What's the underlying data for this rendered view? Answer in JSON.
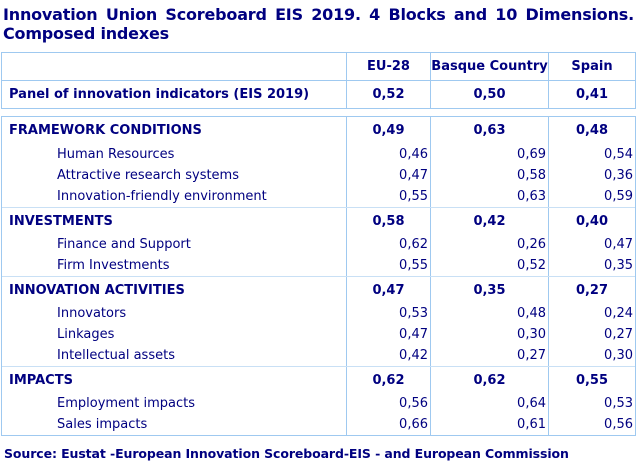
{
  "title": {
    "line1": "Innovation Union Scoreboard EIS 2019. 4 Blocks and 10 Dimensions.",
    "line2": "Composed indexes"
  },
  "columns": [
    "EU-28",
    "Basque Country",
    "Spain"
  ],
  "panel_row": {
    "label": "Panel of innovation indicators (EIS 2019)",
    "values": [
      "0,52",
      "0,50",
      "0,41"
    ]
  },
  "sections": [
    {
      "label": "FRAMEWORK CONDITIONS",
      "values": [
        "0,49",
        "0,63",
        "0,48"
      ],
      "rows": [
        {
          "label": "Human Resources",
          "values": [
            "0,46",
            "0,69",
            "0,54"
          ]
        },
        {
          "label": "Attractive research systems",
          "values": [
            "0,47",
            "0,58",
            "0,36"
          ]
        },
        {
          "label": "Innovation-friendly environment",
          "values": [
            "0,55",
            "0,63",
            "0,59"
          ]
        }
      ]
    },
    {
      "label": "INVESTMENTS",
      "values": [
        "0,58",
        "0,42",
        "0,40"
      ],
      "rows": [
        {
          "label": "Finance and Support",
          "values": [
            "0,62",
            "0,26",
            "0,47"
          ]
        },
        {
          "label": "Firm Investments",
          "values": [
            "0,55",
            "0,52",
            "0,35"
          ]
        }
      ]
    },
    {
      "label": "INNOVATION ACTIVITIES",
      "values": [
        "0,47",
        "0,35",
        "0,27"
      ],
      "rows": [
        {
          "label": "Innovators",
          "values": [
            "0,53",
            "0,48",
            "0,24"
          ]
        },
        {
          "label": "Linkages",
          "values": [
            "0,47",
            "0,30",
            "0,27"
          ]
        },
        {
          "label": "Intellectual assets",
          "values": [
            "0,42",
            "0,27",
            "0,30"
          ]
        }
      ]
    },
    {
      "label": "IMPACTS",
      "values": [
        "0,62",
        "0,62",
        "0,55"
      ],
      "rows": [
        {
          "label": "Employment impacts",
          "values": [
            "0,56",
            "0,64",
            "0,53"
          ]
        },
        {
          "label": "Sales impacts",
          "values": [
            "0,66",
            "0,61",
            "0,56"
          ]
        }
      ]
    }
  ],
  "source": "Source: Eustat -European Innovation Scoreboard-EIS - and European Commission",
  "colors": {
    "text_navy": "#000080",
    "border_blue": "#9fc9f0",
    "background": "#ffffff"
  },
  "chart_data": {
    "type": "table",
    "title": "Innovation Union Scoreboard EIS 2019. 4 Blocks and 10 Dimensions. Composed indexes",
    "columns": [
      "",
      "EU-28",
      "Basque Country",
      "Spain"
    ],
    "rows": [
      [
        "Panel of innovation indicators (EIS 2019)",
        0.52,
        0.5,
        0.41
      ],
      [
        "FRAMEWORK CONDITIONS",
        0.49,
        0.63,
        0.48
      ],
      [
        "Human Resources",
        0.46,
        0.69,
        0.54
      ],
      [
        "Attractive research systems",
        0.47,
        0.58,
        0.36
      ],
      [
        "Innovation-friendly environment",
        0.55,
        0.63,
        0.59
      ],
      [
        "INVESTMENTS",
        0.58,
        0.42,
        0.4
      ],
      [
        "Finance and Support",
        0.62,
        0.26,
        0.47
      ],
      [
        "Firm Investments",
        0.55,
        0.52,
        0.35
      ],
      [
        "INNOVATION ACTIVITIES",
        0.47,
        0.35,
        0.27
      ],
      [
        "Innovators",
        0.53,
        0.48,
        0.24
      ],
      [
        "Linkages",
        0.47,
        0.3,
        0.27
      ],
      [
        "Intellectual assets",
        0.42,
        0.27,
        0.3
      ],
      [
        "IMPACTS",
        0.62,
        0.62,
        0.55
      ],
      [
        "Employment impacts",
        0.56,
        0.64,
        0.53
      ],
      [
        "Sales impacts",
        0.66,
        0.61,
        0.56
      ]
    ],
    "note": "Values displayed with decimal comma; source line: Eustat / European Commission"
  }
}
